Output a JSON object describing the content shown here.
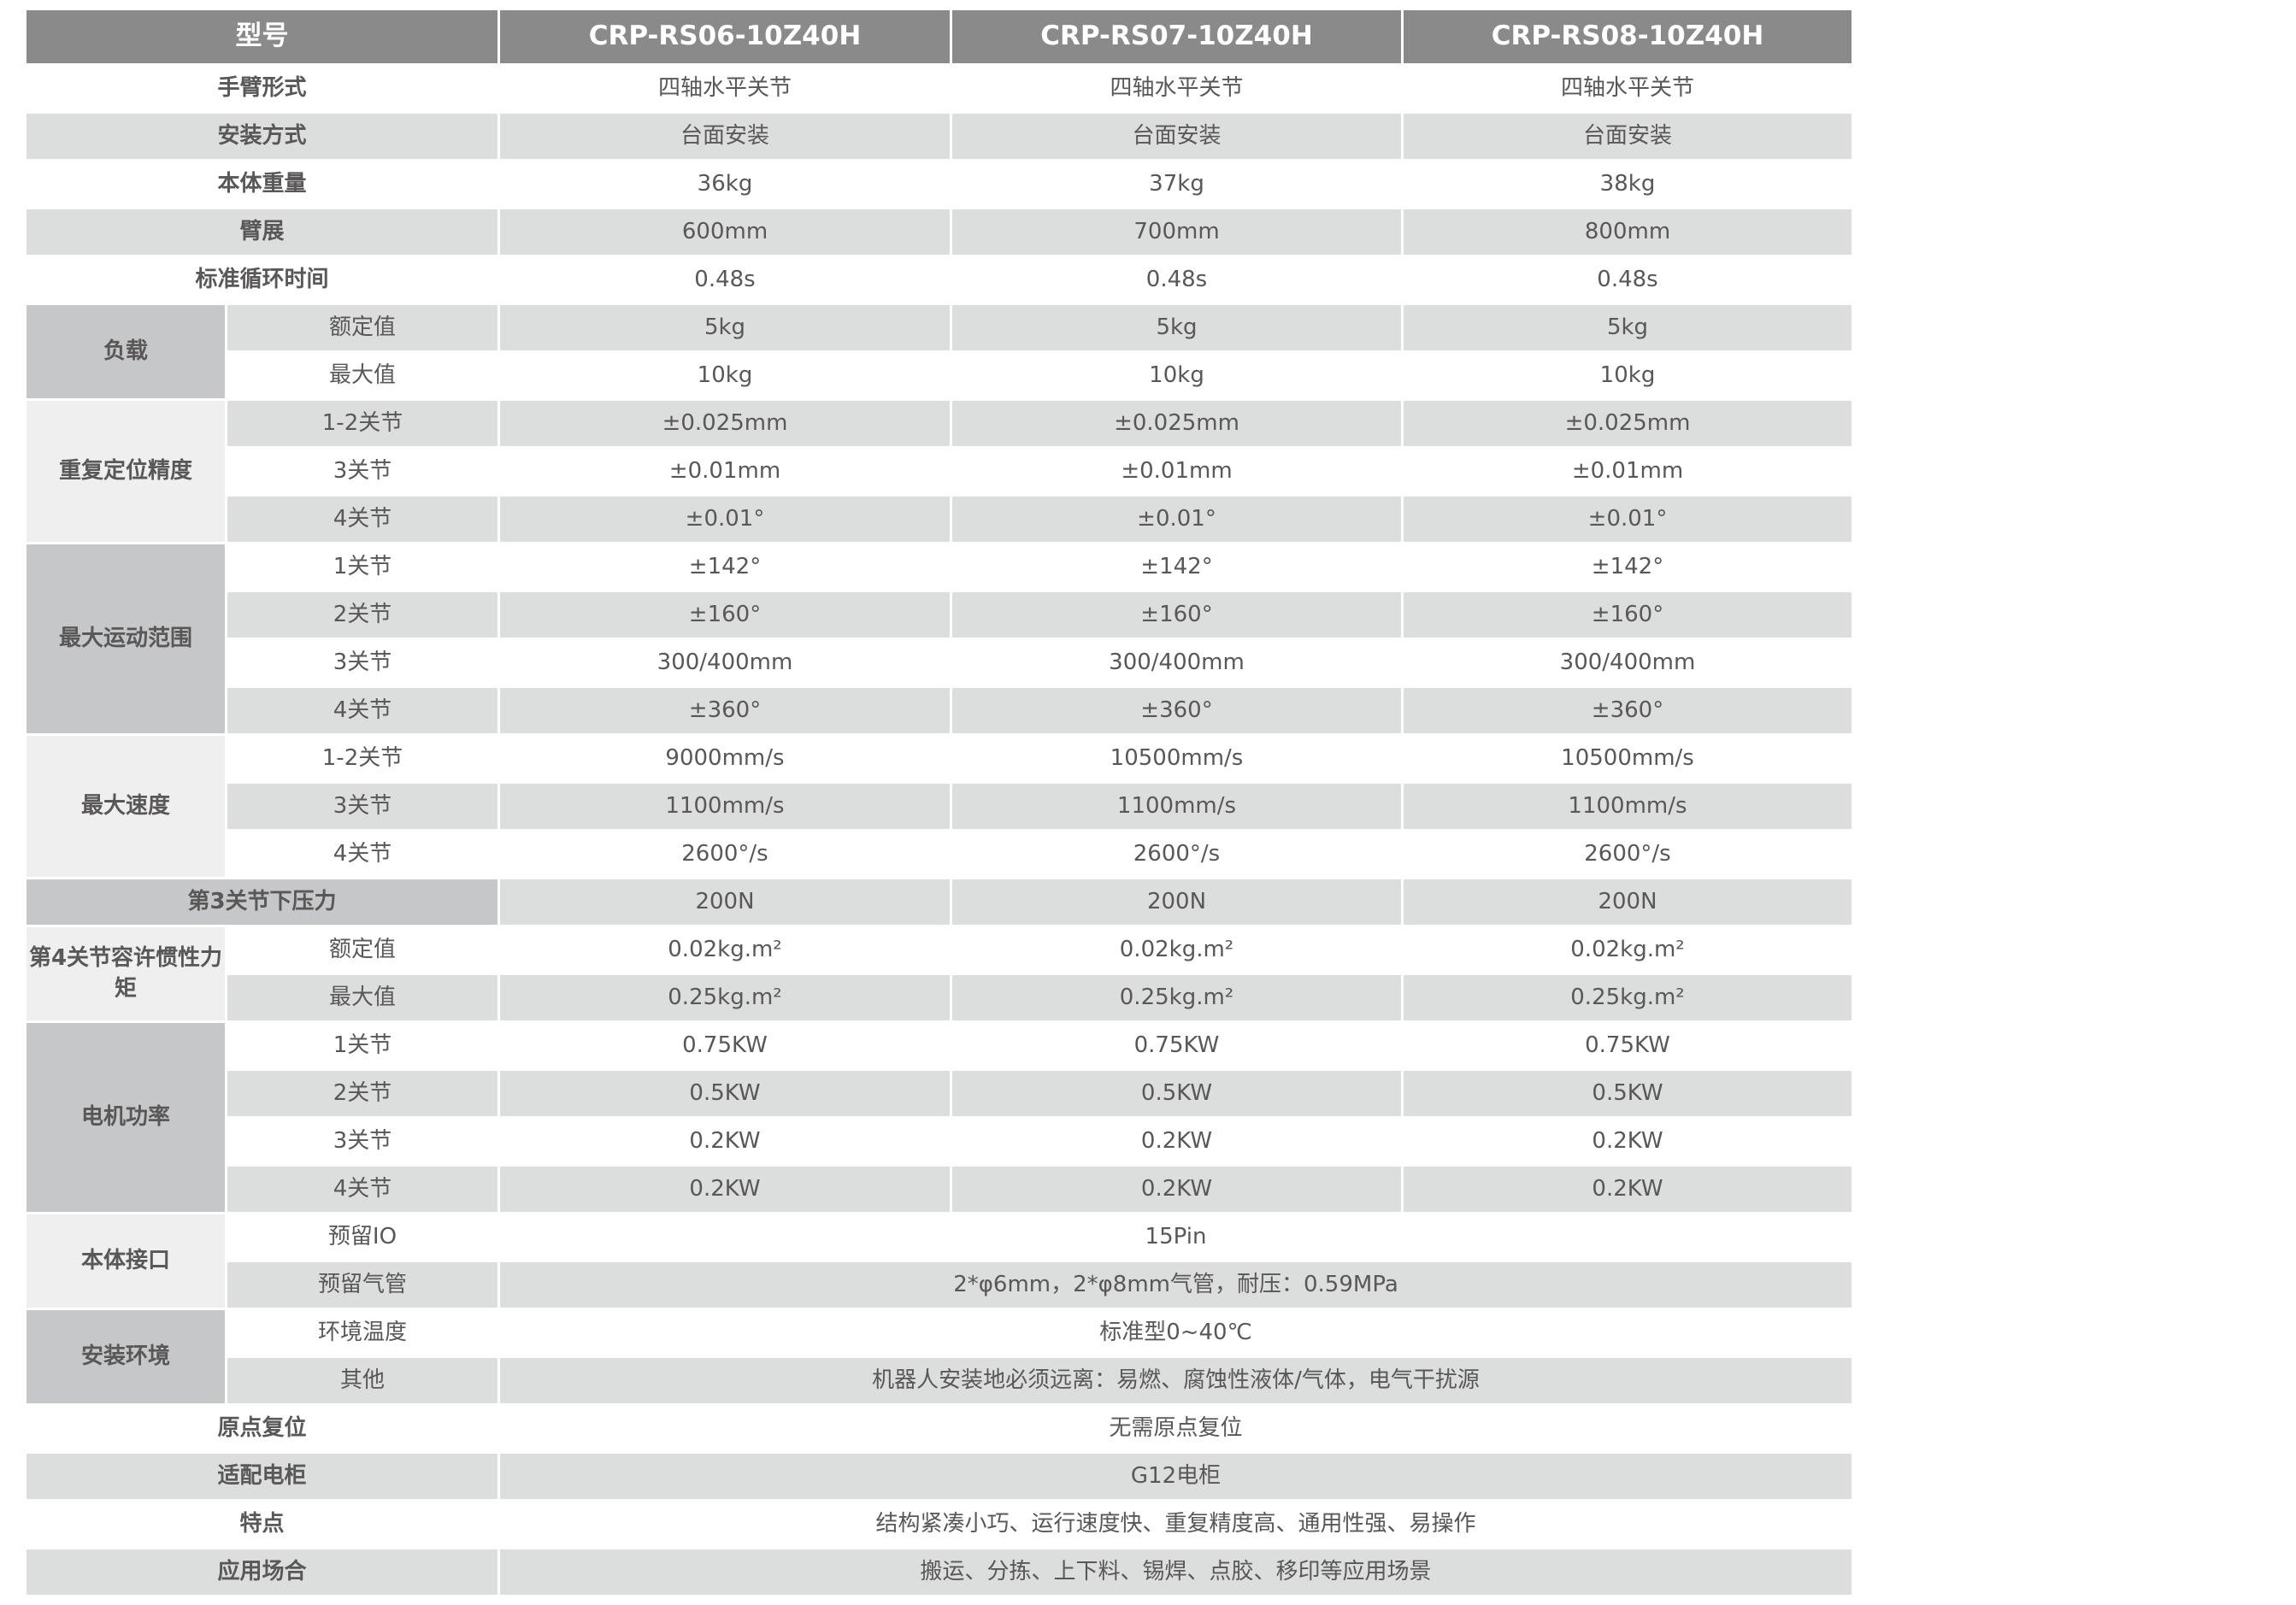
{
  "header": [
    "型号",
    "CRP-RS06-10Z40H",
    "CRP-RS07-10Z40H",
    "CRP-RS08-10Z40H"
  ],
  "colors": {
    "header_bg": "#8a8a8a",
    "stripe": "#dcdddd",
    "group_dark": "#c6c7c9",
    "group_light": "#efefef",
    "text": "#595757"
  },
  "rows": [
    {
      "label": "手臂形式",
      "values": [
        "四轴水平关节",
        "四轴水平关节",
        "四轴水平关节"
      ]
    },
    {
      "label": "安装方式",
      "values": [
        "台面安装",
        "台面安装",
        "台面安装"
      ]
    },
    {
      "label": "本体重量",
      "values": [
        "36kg",
        "37kg",
        "38kg"
      ]
    },
    {
      "label": "臂展",
      "values": [
        "600mm",
        "700mm",
        "800mm"
      ]
    },
    {
      "label": "标准循环时间",
      "values": [
        "0.48s",
        "0.48s",
        "0.48s"
      ]
    },
    {
      "label": "负载",
      "tone": "dark",
      "sub": [
        {
          "label": "额定值",
          "values": [
            "5kg",
            "5kg",
            "5kg"
          ]
        },
        {
          "label": "最大值",
          "values": [
            "10kg",
            "10kg",
            "10kg"
          ]
        }
      ]
    },
    {
      "label": "重复定位精度",
      "tone": "light",
      "sub": [
        {
          "label": "1-2关节",
          "values": [
            "±0.025mm",
            "±0.025mm",
            "±0.025mm"
          ]
        },
        {
          "label": "3关节",
          "values": [
            "±0.01mm",
            "±0.01mm",
            "±0.01mm"
          ]
        },
        {
          "label": "4关节",
          "values": [
            "±0.01°",
            "±0.01°",
            "±0.01°"
          ]
        }
      ]
    },
    {
      "label": "最大运动范围",
      "tone": "dark",
      "sub": [
        {
          "label": "1关节",
          "values": [
            "±142°",
            "±142°",
            "±142°"
          ]
        },
        {
          "label": "2关节",
          "values": [
            "±160°",
            "±160°",
            "±160°"
          ]
        },
        {
          "label": "3关节",
          "values": [
            "300/400mm",
            "300/400mm",
            "300/400mm"
          ]
        },
        {
          "label": "4关节",
          "values": [
            "±360°",
            "±360°",
            "±360°"
          ]
        }
      ]
    },
    {
      "label": "最大速度",
      "tone": "light",
      "sub": [
        {
          "label": "1-2关节",
          "values": [
            "9000mm/s",
            "10500mm/s",
            "10500mm/s"
          ]
        },
        {
          "label": "3关节",
          "values": [
            "1100mm/s",
            "1100mm/s",
            "1100mm/s"
          ]
        },
        {
          "label": "4关节",
          "values": [
            "2600°/s",
            "2600°/s",
            "2600°/s"
          ]
        }
      ]
    },
    {
      "label": "第3关节下压力",
      "tone": "dark",
      "values": [
        "200N",
        "200N",
        "200N"
      ]
    },
    {
      "label": "第4关节容许惯性力矩",
      "tone": "light",
      "sub": [
        {
          "label": "额定值",
          "values": [
            "0.02kg.m²",
            "0.02kg.m²",
            "0.02kg.m²"
          ]
        },
        {
          "label": "最大值",
          "values": [
            "0.25kg.m²",
            "0.25kg.m²",
            "0.25kg.m²"
          ]
        }
      ]
    },
    {
      "label": "电机功率",
      "tone": "dark",
      "sub": [
        {
          "label": "1关节",
          "values": [
            "0.75KW",
            "0.75KW",
            "0.75KW"
          ]
        },
        {
          "label": "2关节",
          "values": [
            "0.5KW",
            "0.5KW",
            "0.5KW"
          ]
        },
        {
          "label": "3关节",
          "values": [
            "0.2KW",
            "0.2KW",
            "0.2KW"
          ]
        },
        {
          "label": "4关节",
          "values": [
            "0.2KW",
            "0.2KW",
            "0.2KW"
          ]
        }
      ]
    },
    {
      "label": "本体接口",
      "tone": "light",
      "sub": [
        {
          "label": "预留IO",
          "value": "15Pin"
        },
        {
          "label": "预留气管",
          "value": "2*φ6mm，2*φ8mm气管，耐压：0.59MPa"
        }
      ]
    },
    {
      "label": "安装环境",
      "tone": "dark",
      "sub": [
        {
          "label": "环境温度",
          "value": "标准型0~40℃"
        },
        {
          "label": "其他",
          "value": "机器人安装地必须远离：易燃、腐蚀性液体/气体，电气干扰源"
        }
      ]
    },
    {
      "label": "原点复位",
      "value": "无需原点复位"
    },
    {
      "label": "适配电柜",
      "value": "G12电柜"
    },
    {
      "label": "特点",
      "value": "结构紧凑小巧、运行速度快、重复精度高、通用性强、易操作"
    },
    {
      "label": "应用场合",
      "value": "搬运、分拣、上下料、锡焊、点胶、移印等应用场景"
    }
  ]
}
